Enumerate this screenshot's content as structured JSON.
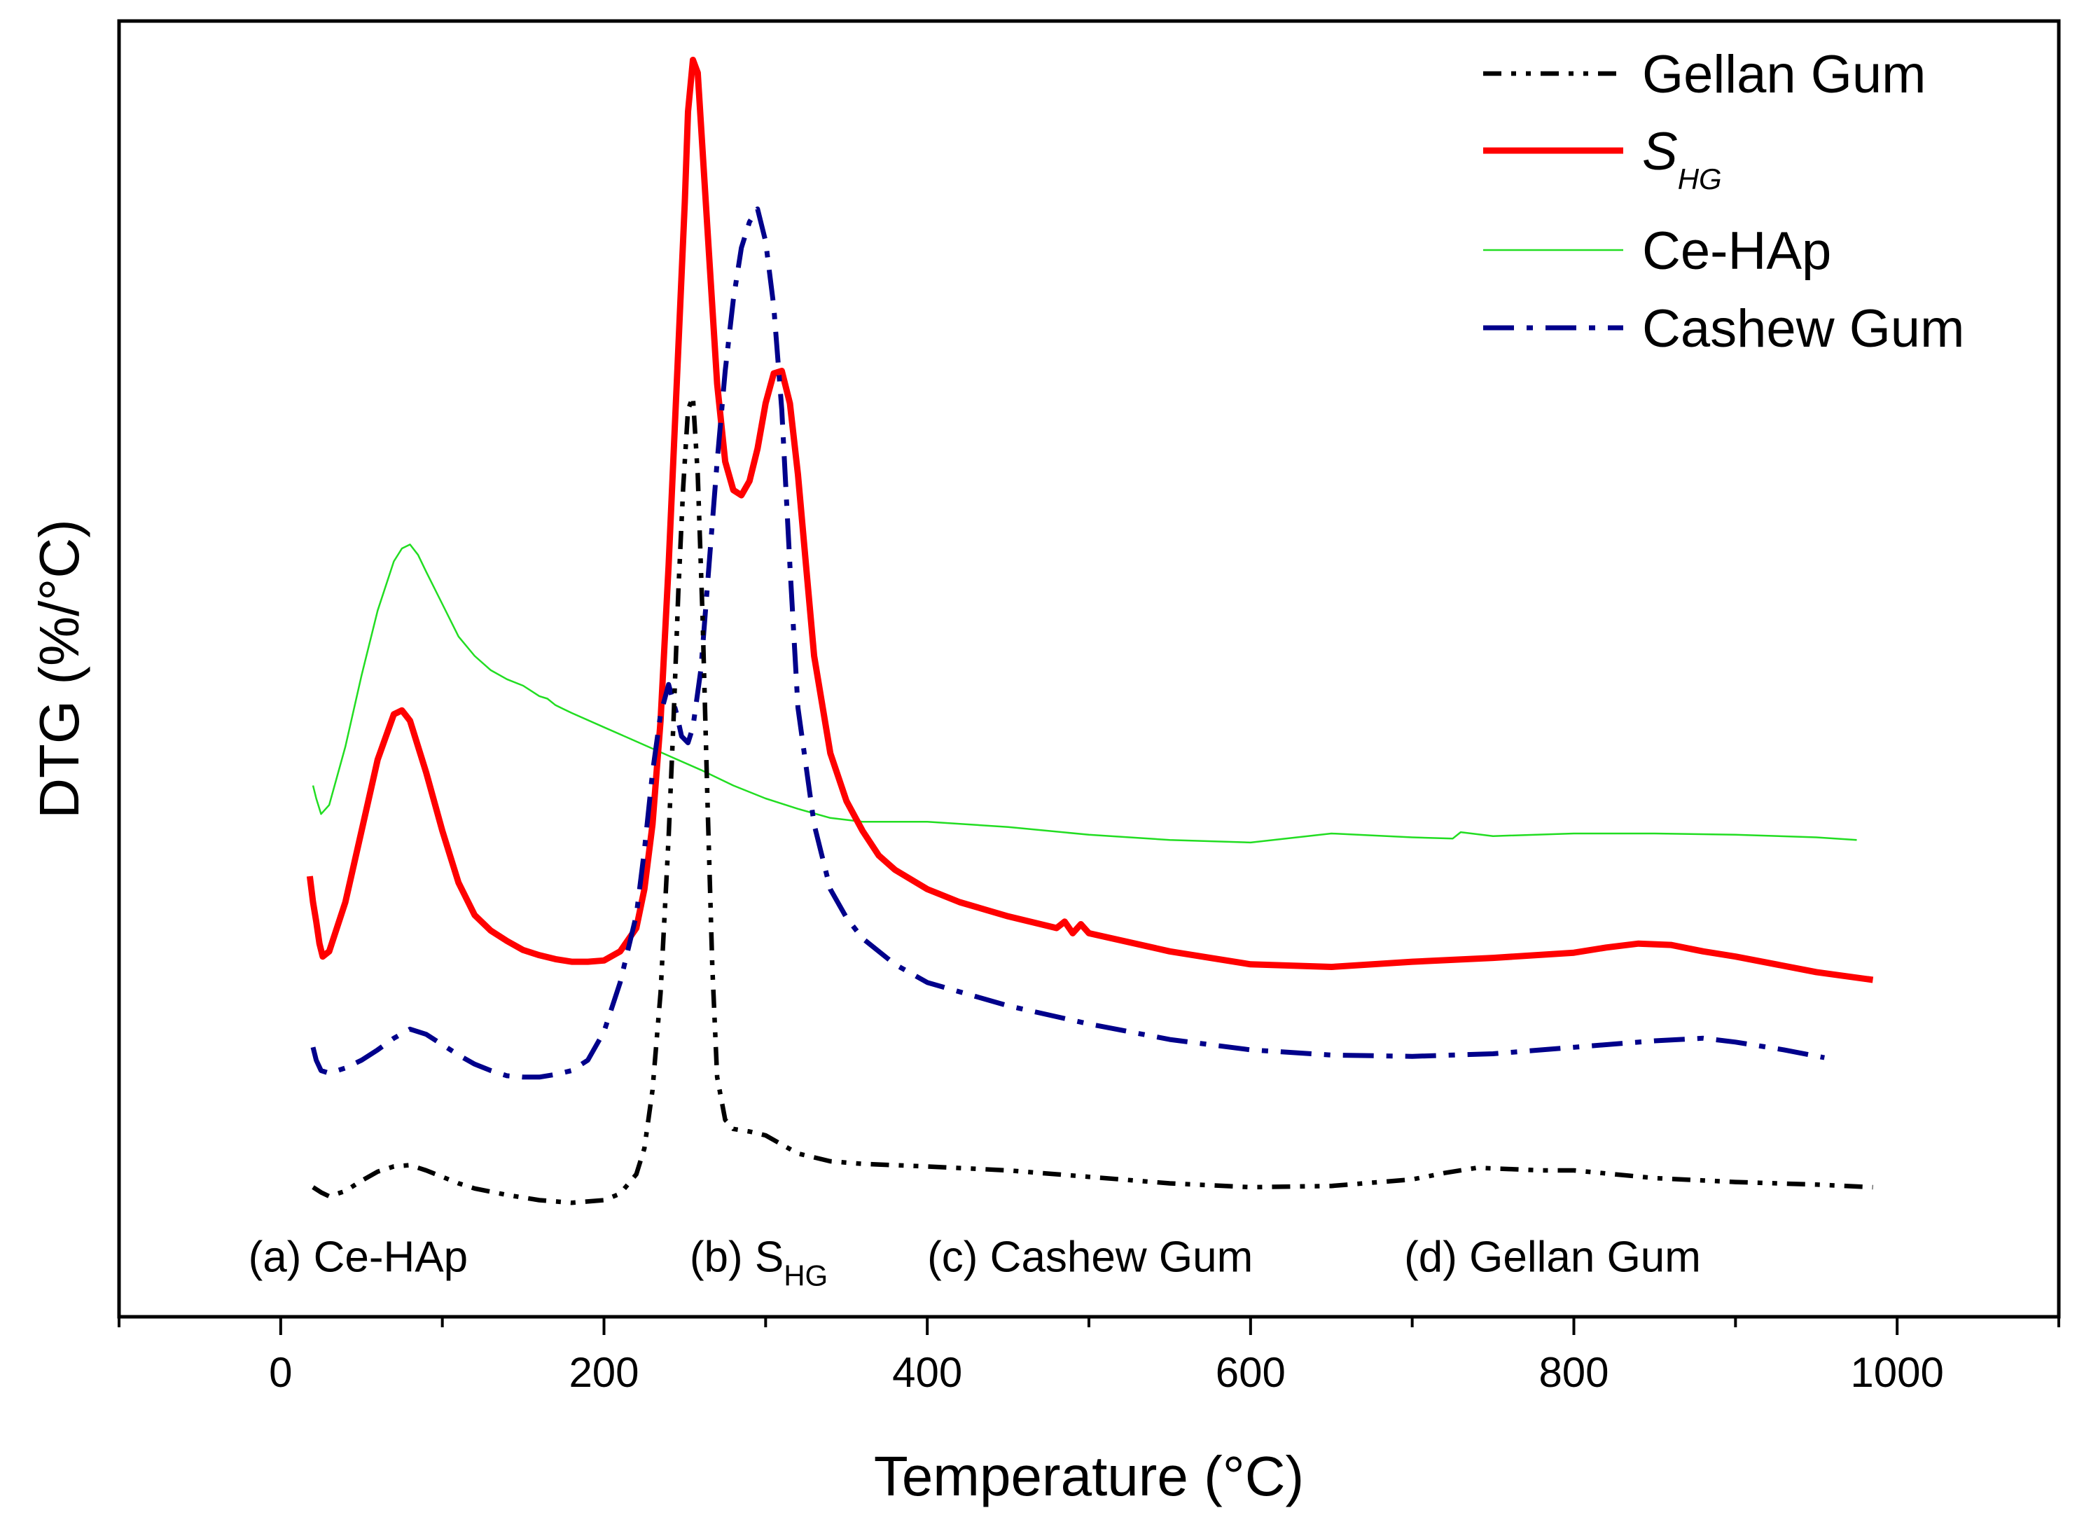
{
  "chart_data": {
    "type": "line",
    "title": "",
    "xlabel": "Temperature (°C)",
    "ylabel": "DTG (%/°C)",
    "xlim": [
      -100,
      1100
    ],
    "ylim": [
      0,
      100
    ],
    "x_ticks": [
      0,
      200,
      400,
      600,
      800,
      1000
    ],
    "x_tick_labels": [
      "0",
      "200",
      "400",
      "600",
      "800",
      "1000"
    ],
    "y_ticks_shown": false,
    "legend": {
      "position": "top-right",
      "entries": [
        {
          "label": "Gellan Gum",
          "series": "gellan"
        },
        {
          "label": "S",
          "sub": "HG",
          "series": "shg"
        },
        {
          "label": "Ce-HAp",
          "series": "cehap"
        },
        {
          "label": "Cashew Gum",
          "series": "cashew"
        }
      ]
    },
    "series": [
      {
        "id": "cehap",
        "name": "Ce-HAp",
        "color": "#22dd22",
        "dash": "solid",
        "width": 2.5,
        "curve_label": "(a)",
        "label_at": [
          1150,
          40.5
        ],
        "x": [
          20,
          22,
          25,
          30,
          40,
          50,
          60,
          70,
          75,
          80,
          85,
          90,
          100,
          110,
          120,
          130,
          140,
          150,
          160,
          165,
          170,
          175,
          180,
          200,
          220,
          240,
          260,
          280,
          300,
          320,
          340,
          360,
          380,
          400,
          450,
          500,
          550,
          600,
          650,
          700,
          725,
          730,
          750,
          800,
          850,
          900,
          950,
          975
        ],
        "y": [
          41.0,
          40.0,
          38.8,
          39.5,
          44.0,
          49.5,
          54.5,
          58.3,
          59.3,
          59.6,
          58.8,
          57.5,
          55.0,
          52.5,
          51.0,
          49.9,
          49.2,
          48.7,
          47.9,
          47.7,
          47.2,
          46.9,
          46.6,
          45.5,
          44.4,
          43.3,
          42.2,
          41.0,
          40.0,
          39.2,
          38.5,
          38.2,
          38.2,
          38.2,
          37.8,
          37.2,
          36.8,
          36.6,
          37.3,
          37.0,
          36.9,
          37.4,
          37.1,
          37.3,
          37.3,
          37.2,
          37.0,
          36.8
        ]
      },
      {
        "id": "shg",
        "name": "S_HG",
        "color": "#ff0000",
        "dash": "solid",
        "width": 9,
        "curve_label": "(b)",
        "label_at": [
          1140,
          27.5
        ],
        "x": [
          18,
          20,
          22,
          24,
          26,
          30,
          40,
          50,
          60,
          70,
          75,
          80,
          90,
          100,
          110,
          120,
          130,
          140,
          150,
          160,
          170,
          180,
          190,
          200,
          210,
          220,
          225,
          230,
          235,
          240,
          245,
          250,
          252,
          255,
          258,
          260,
          265,
          270,
          275,
          280,
          285,
          290,
          295,
          300,
          305,
          310,
          315,
          320,
          325,
          330,
          340,
          350,
          360,
          370,
          380,
          400,
          420,
          450,
          480,
          485,
          490,
          495,
          500,
          550,
          600,
          650,
          700,
          750,
          800,
          820,
          840,
          860,
          880,
          900,
          950,
          985
        ],
        "y": [
          34.0,
          32.0,
          30.5,
          28.8,
          27.8,
          28.2,
          32.0,
          37.5,
          43.0,
          46.5,
          46.8,
          46.0,
          42.0,
          37.5,
          33.5,
          31.0,
          29.8,
          29.0,
          28.3,
          27.9,
          27.6,
          27.4,
          27.4,
          27.5,
          28.2,
          30.0,
          33.0,
          38.0,
          46.0,
          58.0,
          72.0,
          86.0,
          93.0,
          97.0,
          96.0,
          92.0,
          82.0,
          72.0,
          66.0,
          63.8,
          63.4,
          64.5,
          67.0,
          70.5,
          72.8,
          73.0,
          70.5,
          65.0,
          58.0,
          51.0,
          43.5,
          39.8,
          37.5,
          35.6,
          34.5,
          33.0,
          32.0,
          30.9,
          30.0,
          30.5,
          29.6,
          30.3,
          29.6,
          28.2,
          27.2,
          27.0,
          27.4,
          27.7,
          28.1,
          28.5,
          28.8,
          28.7,
          28.2,
          27.8,
          26.6,
          26.0
        ]
      },
      {
        "id": "cashew",
        "name": "Cashew Gum",
        "color": "#00008b",
        "dash": "dashdot",
        "width": 7,
        "curve_label": "(c)",
        "label_at": [
          1140,
          21.5
        ],
        "x": [
          20,
          22,
          25,
          30,
          40,
          50,
          60,
          70,
          80,
          90,
          100,
          110,
          120,
          130,
          140,
          150,
          160,
          170,
          180,
          190,
          200,
          210,
          220,
          225,
          230,
          235,
          240,
          245,
          248,
          252,
          255,
          260,
          265,
          270,
          275,
          280,
          285,
          290,
          295,
          300,
          305,
          310,
          315,
          320,
          330,
          340,
          350,
          360,
          380,
          400,
          450,
          500,
          550,
          600,
          650,
          700,
          750,
          800,
          850,
          880,
          900,
          930,
          955
        ],
        "y": [
          20.8,
          19.8,
          19.0,
          18.8,
          19.2,
          19.8,
          20.6,
          21.5,
          22.2,
          21.8,
          21.0,
          20.2,
          19.5,
          19.0,
          18.6,
          18.5,
          18.5,
          18.7,
          19.0,
          19.8,
          22.0,
          25.8,
          31.0,
          36.0,
          42.0,
          46.5,
          48.8,
          46.5,
          44.8,
          44.3,
          45.5,
          50.0,
          58.0,
          66.0,
          73.0,
          78.5,
          82.5,
          84.5,
          85.5,
          83.0,
          78.0,
          70.0,
          58.0,
          47.0,
          38.0,
          33.0,
          30.8,
          29.2,
          27.2,
          25.8,
          24.0,
          22.6,
          21.4,
          20.6,
          20.2,
          20.1,
          20.3,
          20.8,
          21.3,
          21.5,
          21.2,
          20.6,
          20.0
        ]
      },
      {
        "id": "gellan",
        "name": "Gellan Gum",
        "color": "#000000",
        "dash": "dashdotdot",
        "width": 6.5,
        "curve_label": "(d)",
        "label_at": [
          1150,
          13.0
        ],
        "x": [
          20,
          25,
          30,
          40,
          50,
          60,
          70,
          80,
          90,
          100,
          110,
          120,
          140,
          160,
          180,
          200,
          210,
          220,
          225,
          230,
          235,
          240,
          243,
          246,
          249,
          252,
          255,
          258,
          261,
          264,
          267,
          270,
          275,
          280,
          290,
          300,
          310,
          320,
          340,
          360,
          400,
          450,
          500,
          550,
          600,
          650,
          700,
          720,
          740,
          760,
          780,
          800,
          850,
          900,
          950,
          985
        ],
        "y": [
          10.0,
          9.6,
          9.3,
          9.7,
          10.5,
          11.2,
          11.6,
          11.7,
          11.3,
          10.8,
          10.3,
          9.9,
          9.4,
          9.0,
          8.8,
          9.0,
          9.5,
          11.0,
          13.0,
          17.5,
          25.0,
          37.0,
          46.0,
          56.0,
          64.0,
          70.0,
          71.0,
          65.0,
          54.0,
          40.0,
          27.0,
          18.5,
          15.2,
          14.5,
          14.3,
          14.0,
          13.3,
          12.6,
          12.0,
          11.8,
          11.6,
          11.3,
          10.8,
          10.3,
          10.0,
          10.1,
          10.6,
          11.1,
          11.5,
          11.4,
          11.3,
          11.3,
          10.7,
          10.4,
          10.2,
          10.0
        ]
      }
    ],
    "annotations": [
      {
        "text": "(a) Ce-HAp",
        "x": -20,
        "y": 3.5
      },
      {
        "text": "(b) S",
        "sub": "HG",
        "x": 253,
        "y": 3.5
      },
      {
        "text": "(c) Cashew Gum",
        "x": 400,
        "y": 3.5
      },
      {
        "text": "(d) Gellan Gum",
        "x": 695,
        "y": 3.5
      }
    ]
  }
}
